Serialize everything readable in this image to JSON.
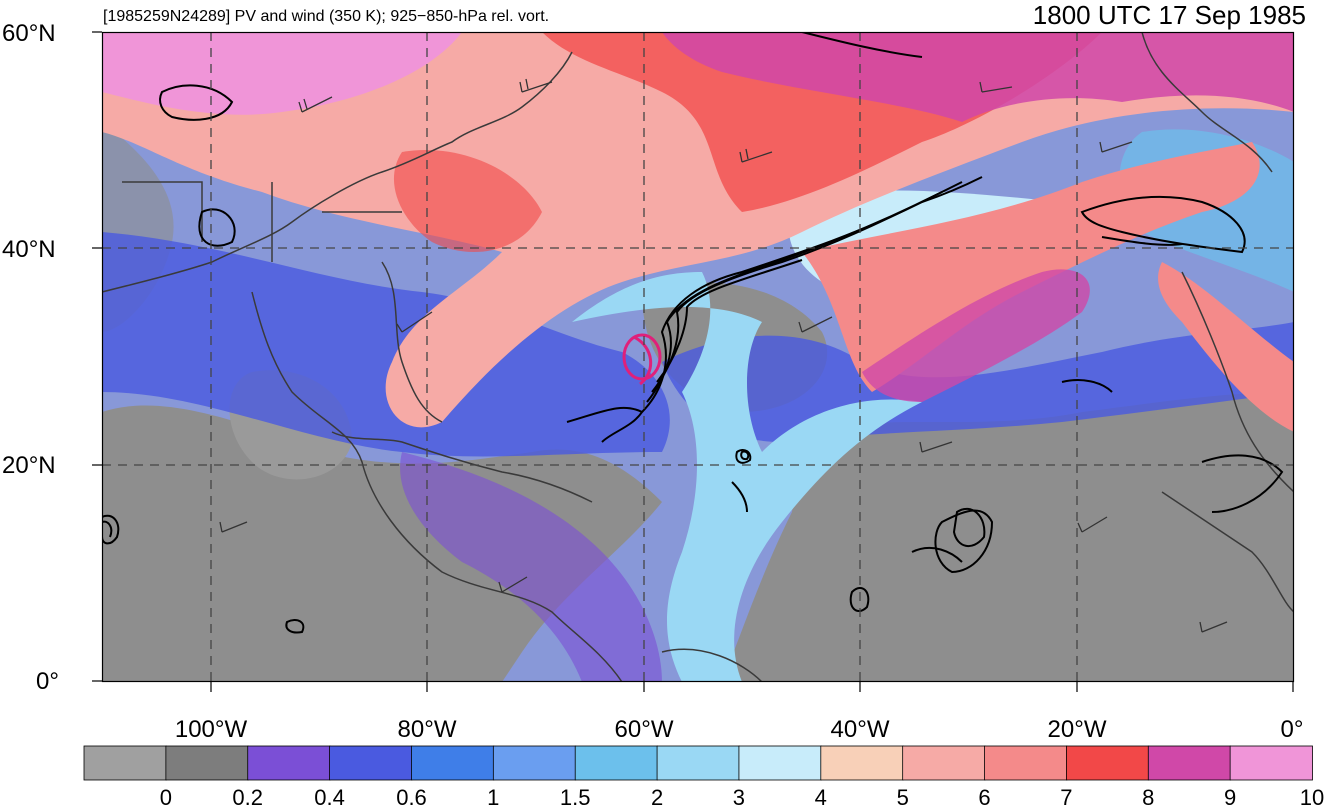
{
  "title": {
    "left": "[1985259N24289] PV and wind (350 K); 925−850-hPa rel. vort.",
    "right": "1800 UTC 17 Sep 1985"
  },
  "lat_labels": [
    "60°N",
    "40°N",
    "20°N",
    "0°"
  ],
  "lon_labels": [
    "100°W",
    "80°W",
    "60°W",
    "40°W",
    "20°W",
    "0°"
  ],
  "colorbar": {
    "labels": [
      "0",
      "0.2",
      "0.4",
      "0.6",
      "1",
      "1.5",
      "2",
      "3",
      "4",
      "5",
      "6",
      "7",
      "8",
      "9",
      "10"
    ],
    "colors": [
      "#a0a0a0",
      "#7d7d7d",
      "#7b4fd6",
      "#4a5ae0",
      "#3f7ee8",
      "#6a9ef0",
      "#6cc0ec",
      "#9ad8f4",
      "#c8ecfa",
      "#f8d0b8",
      "#f6aaa6",
      "#f48a8a",
      "#f24848",
      "#d048a8",
      "#f095d8"
    ]
  },
  "map_style": {
    "ocean": "#8898d8",
    "grid_color": "#444444",
    "storm_marker_color": "#e0207a",
    "vorticity_color": "#000000",
    "coast_color": "#3a3a3a"
  }
}
